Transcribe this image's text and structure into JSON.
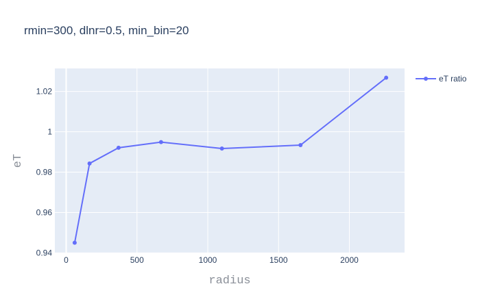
{
  "chart_data": {
    "type": "line",
    "title": "rmin=300, dlnr=0.5, min_bin=20",
    "xlabel": "radius",
    "ylabel": "eT",
    "xlim": [
      -80,
      2390
    ],
    "ylim": [
      0.9398,
      1.0314
    ],
    "x_ticks": [
      0,
      500,
      1000,
      1500,
      2000
    ],
    "x_tick_labels": [
      "0",
      "500",
      "1000",
      "1500",
      "2000"
    ],
    "y_ticks": [
      0.94,
      0.96,
      0.98,
      1.0,
      1.02
    ],
    "y_tick_labels": [
      "0.94",
      "0.96",
      "0.98",
      "1",
      "1.02"
    ],
    "grid": true,
    "legend_position": "top-right",
    "series": [
      {
        "name": "eT ratio",
        "color": "#636efa",
        "x": [
          60,
          165,
          370,
          670,
          1100,
          1655,
          2260
        ],
        "y": [
          0.945,
          0.9843,
          0.9921,
          0.9949,
          0.9917,
          0.9934,
          1.0268
        ]
      }
    ]
  }
}
